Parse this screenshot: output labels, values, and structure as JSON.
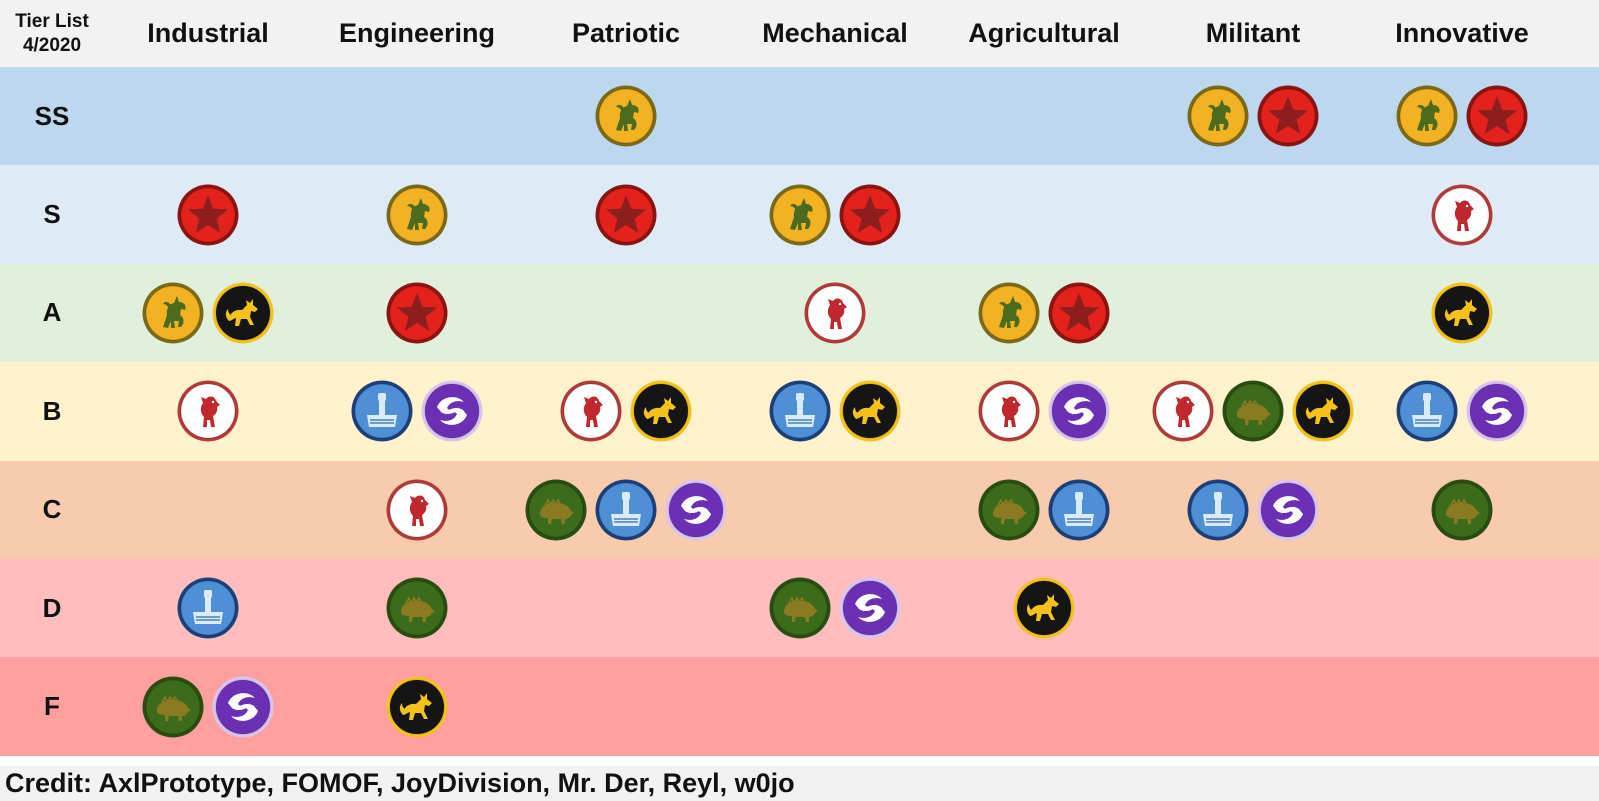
{
  "header": {
    "title_line1": "Tier List",
    "title_line2": "4/2020"
  },
  "columns": [
    "Industrial",
    "Engineering",
    "Patriotic",
    "Mechanical",
    "Agricultural",
    "Militant",
    "Innovative"
  ],
  "rows": [
    {
      "label": "SS",
      "color": "#bdd7ee",
      "cells": [
        [],
        [],
        [
          "horse"
        ],
        [],
        [],
        [
          "horse",
          "star"
        ],
        [
          "horse",
          "star"
        ]
      ]
    },
    {
      "label": "S",
      "color": "#deebf7",
      "cells": [
        [
          "star"
        ],
        [
          "horse"
        ],
        [
          "star"
        ],
        [
          "horse",
          "star"
        ],
        [],
        [],
        [
          "bear"
        ]
      ]
    },
    {
      "label": "A",
      "color": "#e2efda",
      "cells": [
        [
          "horse",
          "wolf"
        ],
        [
          "star"
        ],
        [],
        [
          "bear"
        ],
        [
          "horse",
          "star"
        ],
        [],
        [
          "wolf"
        ]
      ]
    },
    {
      "label": "B",
      "color": "#fff2cc",
      "cells": [
        [
          "bear"
        ],
        [
          "hammer",
          "serpent"
        ],
        [
          "bear",
          "wolf"
        ],
        [
          "hammer",
          "wolf"
        ],
        [
          "bear",
          "serpent"
        ],
        [
          "bear",
          "boar",
          "wolf"
        ],
        [
          "hammer",
          "serpent"
        ]
      ]
    },
    {
      "label": "C",
      "color": "#f8cbad",
      "cells": [
        [],
        [
          "bear"
        ],
        [
          "boar",
          "hammer",
          "serpent"
        ],
        [],
        [
          "boar",
          "hammer"
        ],
        [
          "hammer",
          "serpent"
        ],
        [
          "boar"
        ]
      ]
    },
    {
      "label": "D",
      "color": "#ffbdbd",
      "cells": [
        [
          "hammer"
        ],
        [
          "boar"
        ],
        [],
        [
          "boar",
          "serpent"
        ],
        [
          "wolf"
        ],
        [],
        []
      ]
    },
    {
      "label": "F",
      "color": "#ff9f9f",
      "cells": [
        [
          "boar",
          "serpent"
        ],
        [
          "wolf"
        ],
        [],
        [],
        [],
        [],
        []
      ]
    }
  ],
  "tokens": {
    "horse": {
      "icon": "horse-icon",
      "fill": "#f3b222",
      "ring": "#7a6a1a",
      "fig": "#4d6b1f"
    },
    "star": {
      "icon": "star-icon",
      "fill": "#e3221e",
      "ring": "#8a1512",
      "fig": "#8e1e1e"
    },
    "bear": {
      "icon": "bear-icon",
      "fill": "#ffffff",
      "ring": "#b43a3a",
      "fig": "#c0282d"
    },
    "wolf": {
      "icon": "wolf-icon",
      "fill": "#151515",
      "ring": "#f4c21a",
      "fig": "#f4c21a"
    },
    "hammer": {
      "icon": "hammer-icon",
      "fill": "#4f8fd6",
      "ring": "#1d3f7a",
      "fig": "#d9ebfb"
    },
    "serpent": {
      "icon": "serpent-icon",
      "fill": "#6b2fb3",
      "ring": "#d9c4f0",
      "fig": "#ffffff"
    },
    "boar": {
      "icon": "boar-icon",
      "fill": "#3d6b1c",
      "ring": "#2a4d12",
      "fig": "#8a7a22"
    }
  },
  "footer": {
    "credit": "Credit: AxlPrototype, FOMOF, JoyDivision, Mr. Der, Reyl, w0jo"
  }
}
